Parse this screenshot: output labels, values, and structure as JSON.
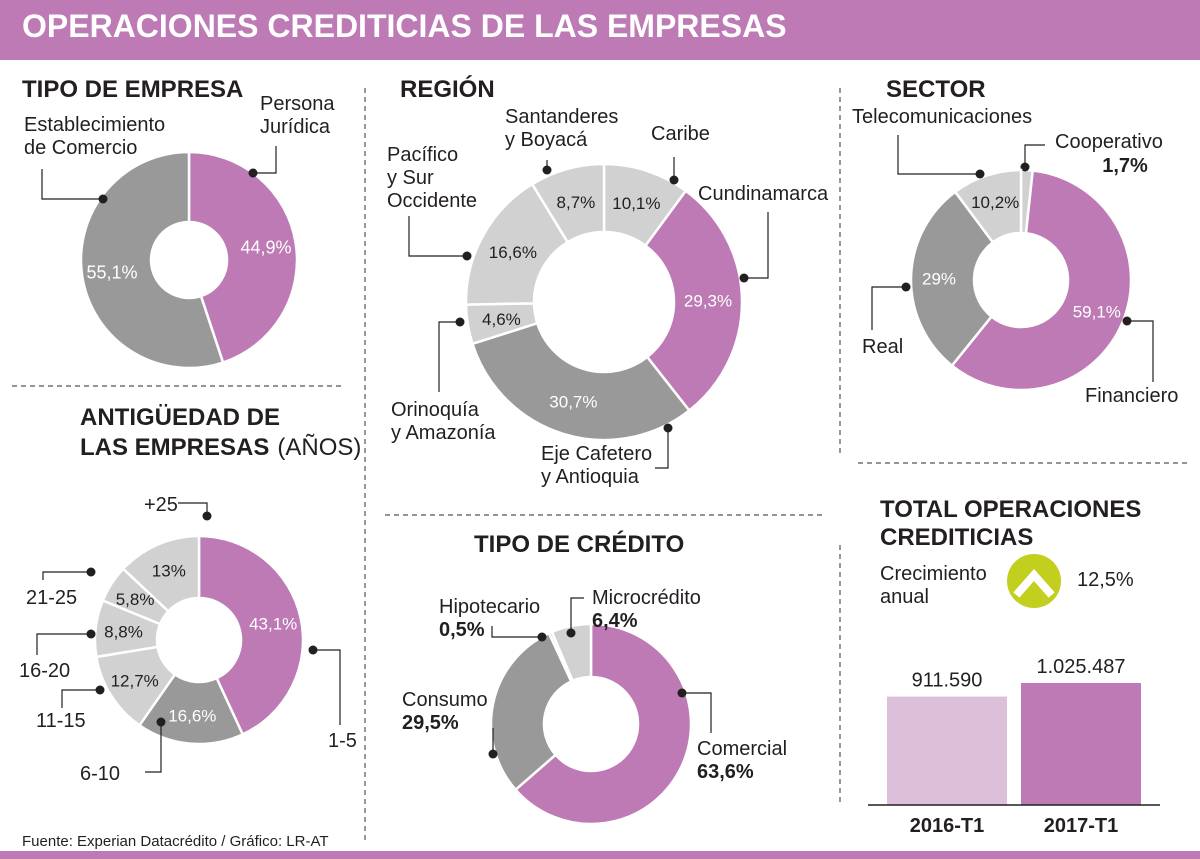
{
  "header": {
    "title": "OPERACIONES CREDITICIAS DE LAS EMPRESAS"
  },
  "colors": {
    "purple": "#bd7ab4",
    "gray_dark": "#999999",
    "gray_light": "#d1d1d1",
    "lavender": "#dcbfd8",
    "check_green": "#c3cf1e"
  },
  "panels": {
    "tipo_empresa": {
      "title": "TIPO DE EMPRESA"
    },
    "region": {
      "title": "REGIÓN"
    },
    "sector": {
      "title": "SECTOR"
    },
    "antiguedad": {
      "title_line1": "ANTIGÜEDAD DE",
      "title_line2": "LAS EMPRESAS",
      "title_suffix": "(AÑOS)"
    },
    "tipo_credito": {
      "title": "TIPO DE CRÉDITO"
    },
    "total": {
      "title_line1": "TOTAL OPERACIONES",
      "title_line2": "CREDITICIAS",
      "growth_label_line1": "Crecimiento",
      "growth_label_line2": "anual",
      "growth_value": "12,5%",
      "growth_icon": "chevron-up-icon"
    }
  },
  "chart_data": [
    {
      "type": "pie",
      "id": "tipo_empresa",
      "title": "TIPO DE EMPRESA",
      "slices": [
        {
          "label_lines": [
            "Persona",
            "Jurídica"
          ],
          "value": 44.9,
          "value_label": "44,9%",
          "color": "purple"
        },
        {
          "label_lines": [
            "Establecimiento",
            "de Comercio"
          ],
          "value": 55.1,
          "value_label": "55,1%",
          "color": "gray_dark"
        }
      ]
    },
    {
      "type": "pie",
      "id": "region",
      "title": "REGIÓN",
      "slices": [
        {
          "label_lines": [
            "Caribe"
          ],
          "value": 10.1,
          "value_label": "10,1%",
          "color": "gray_light"
        },
        {
          "label_lines": [
            "Cundinamarca"
          ],
          "value": 29.3,
          "value_label": "29,3%",
          "color": "purple"
        },
        {
          "label_lines": [
            "Eje Cafetero",
            "y Antioquia"
          ],
          "value": 30.7,
          "value_label": "30,7%",
          "color": "gray_dark"
        },
        {
          "label_lines": [
            "Orinoquía",
            "y Amazonía"
          ],
          "value": 4.6,
          "value_label": "4,6%",
          "color": "gray_light"
        },
        {
          "label_lines": [
            "Pacífico",
            "y Sur",
            "Occidente"
          ],
          "value": 16.6,
          "value_label": "16,6%",
          "color": "gray_light"
        },
        {
          "label_lines": [
            "Santanderes",
            "y Boyacá"
          ],
          "value": 8.7,
          "value_label": "8,7%",
          "color": "gray_light"
        }
      ]
    },
    {
      "type": "pie",
      "id": "sector",
      "title": "SECTOR",
      "slices": [
        {
          "label_lines": [
            "Cooperativo"
          ],
          "value": 1.7,
          "value_label": "1,7%",
          "color": "gray_light"
        },
        {
          "label_lines": [
            "Financiero"
          ],
          "value": 59.1,
          "value_label": "59,1%",
          "color": "purple"
        },
        {
          "label_lines": [
            "Real"
          ],
          "value": 29,
          "value_label": "29%",
          "color": "gray_dark"
        },
        {
          "label_lines": [
            "Telecomunicaciones"
          ],
          "value": 10.2,
          "value_label": "10,2%",
          "color": "gray_light"
        }
      ]
    },
    {
      "type": "pie",
      "id": "antiguedad",
      "title": "ANTIGÜEDAD DE LAS EMPRESAS (AÑOS)",
      "slices": [
        {
          "label_lines": [
            "1-5"
          ],
          "value": 43.1,
          "value_label": "43,1%",
          "color": "purple"
        },
        {
          "label_lines": [
            "6-10"
          ],
          "value": 16.6,
          "value_label": "16,6%",
          "color": "gray_dark"
        },
        {
          "label_lines": [
            "11-15"
          ],
          "value": 12.7,
          "value_label": "12,7%",
          "color": "gray_light"
        },
        {
          "label_lines": [
            "16-20"
          ],
          "value": 8.8,
          "value_label": "8,8%",
          "color": "gray_light"
        },
        {
          "label_lines": [
            "21-25"
          ],
          "value": 5.8,
          "value_label": "5,8%",
          "color": "gray_light"
        },
        {
          "label_lines": [
            "+25"
          ],
          "value": 13,
          "value_label": "13%",
          "color": "gray_light"
        }
      ]
    },
    {
      "type": "pie",
      "id": "tipo_credito",
      "title": "TIPO DE CRÉDITO",
      "slices": [
        {
          "label_lines": [
            "Comercial"
          ],
          "value": 63.6,
          "value_label": "63,6%",
          "color": "purple"
        },
        {
          "label_lines": [
            "Consumo"
          ],
          "value": 29.5,
          "value_label": "29,5%",
          "color": "gray_dark"
        },
        {
          "label_lines": [
            "Hipotecario"
          ],
          "value": 0.5,
          "value_label": "0,5%",
          "color": "gray_light"
        },
        {
          "label_lines": [
            "Microcrédito"
          ],
          "value": 6.4,
          "value_label": "6,4%",
          "color": "gray_light"
        }
      ]
    },
    {
      "type": "bar",
      "id": "total_operaciones",
      "title": "TOTAL OPERACIONES CREDITICIAS",
      "categories": [
        "2016-T1",
        "2017-T1"
      ],
      "values": [
        911590,
        1025487
      ],
      "value_labels": [
        "911.590",
        "1.025.487"
      ],
      "colors": [
        "lavender",
        "purple"
      ]
    }
  ],
  "footer": {
    "source": "Fuente: Experian Datacrédito / Gráfico: LR-AT"
  }
}
